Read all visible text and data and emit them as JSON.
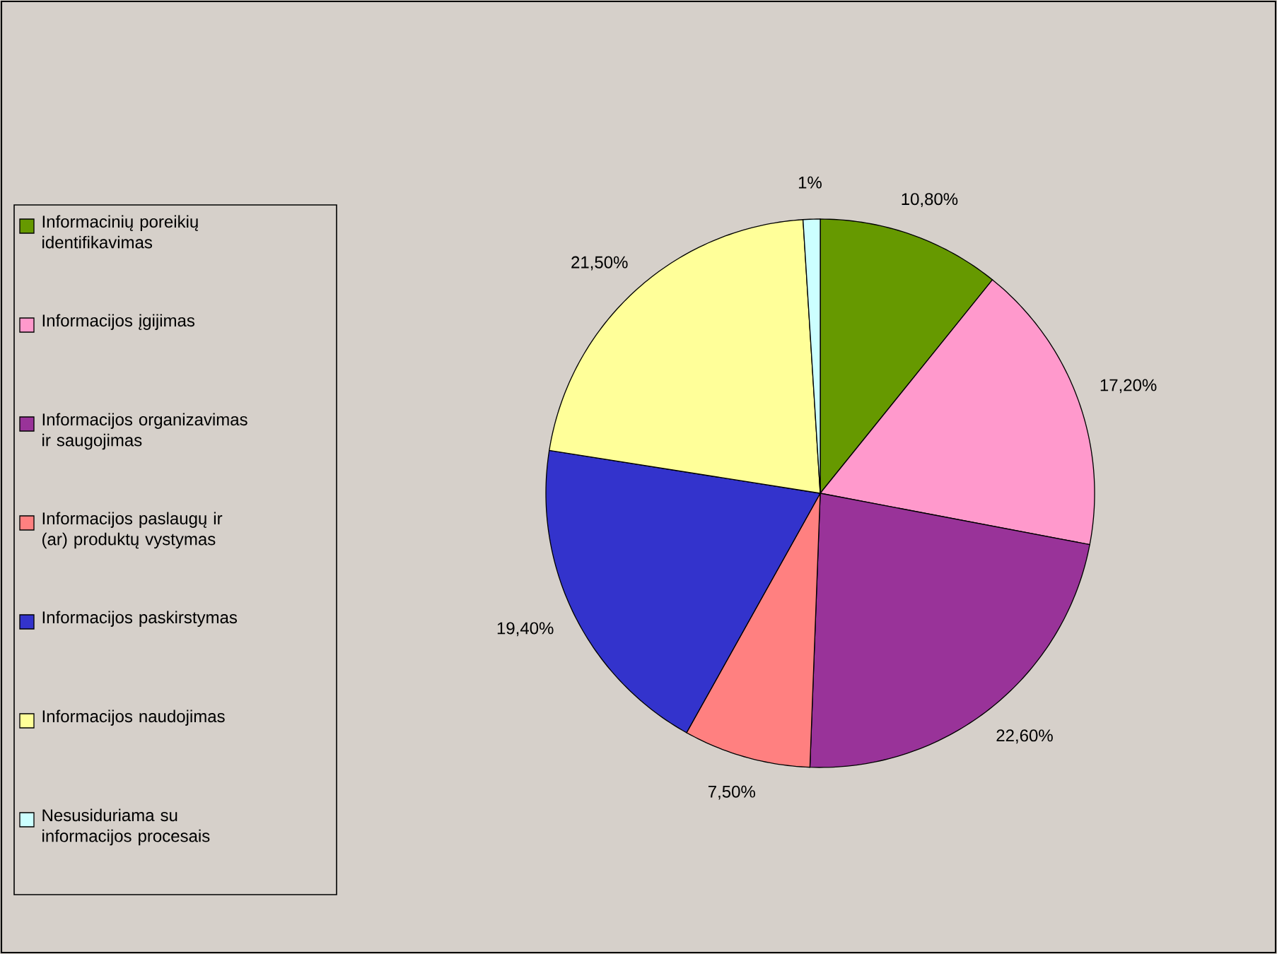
{
  "chart_data": {
    "type": "pie",
    "categories": [
      "Informacinių poreikių identifikavimas",
      "Informacijos įgijimas",
      "Informacijos organizavimas ir saugojimas",
      "Informacijos paslaugų ir (ar) produktų vystymas",
      "Informacijos paskirstymas",
      "Informacijos naudojimas",
      "Nesusiduriama su informacijos procesais"
    ],
    "values": [
      10.8,
      17.2,
      22.6,
      7.5,
      19.4,
      21.5,
      1
    ],
    "value_labels": [
      "10,80%",
      "17,20%",
      "22,60%",
      "7,50%",
      "19,40%",
      "21,50%",
      "1%"
    ],
    "colors": [
      "#669900",
      "#ff99cc",
      "#993399",
      "#ff8080",
      "#3333cc",
      "#ffff99",
      "#ccffff"
    ],
    "legend": "left"
  }
}
